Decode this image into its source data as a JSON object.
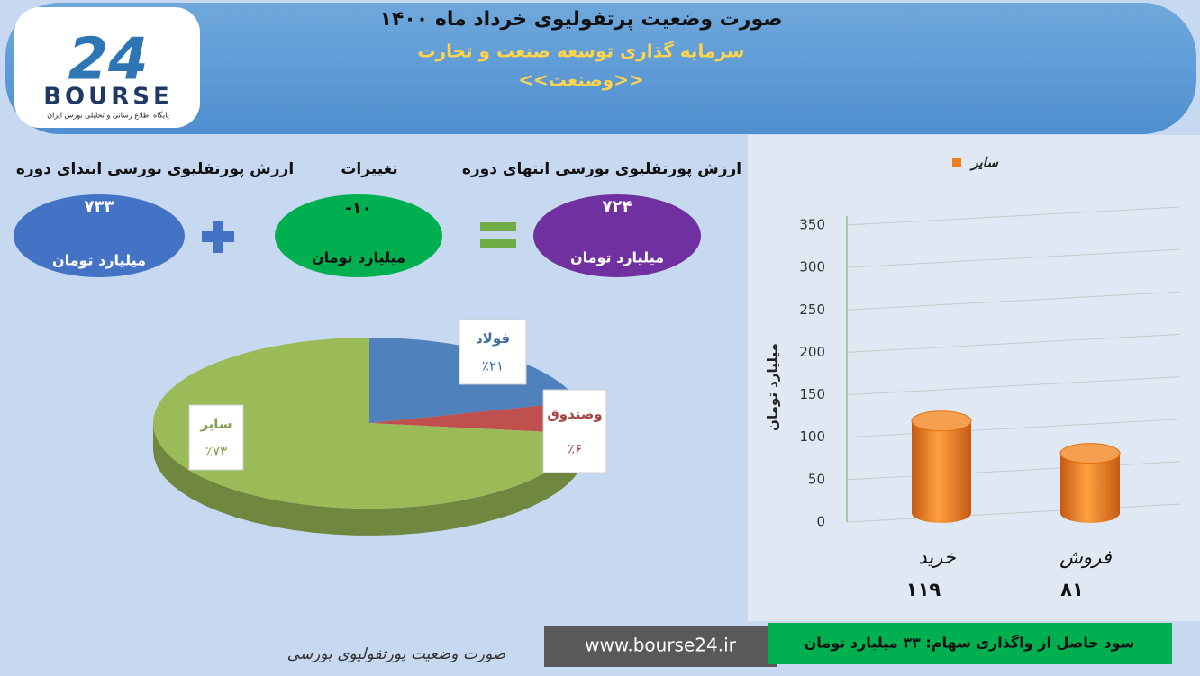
{
  "header": {
    "title": "صورت وضعیت پرتفولیوی خرداد ماه ۱۴۰۰",
    "subtitle": "سرمایه گذاری توسعه صنعت و تجارت",
    "symbol": "<<وصنعت>>",
    "logo": {
      "number": "24",
      "name": "BOURSE",
      "tagline": "پایگاه اطلاع رسانی و تحلیلی بورس ایران"
    }
  },
  "summary": [
    {
      "label": "ارزش پورتفلیوی بورسی ابتدای دوره",
      "value": "۷۳۳",
      "unit": "میلیارد تومان"
    },
    {
      "label": "تغییرات",
      "value": "-۱۰",
      "unit": "میلیارد تومان"
    },
    {
      "label": "ارزش پورتفلیوی بورسی انتهای دوره",
      "value": "۷۲۴",
      "unit": "میلیارد تومان"
    }
  ],
  "chart_data": [
    {
      "type": "pie",
      "categories": [
        "فولاد",
        "وصندوق",
        "سایر"
      ],
      "values": [
        21,
        6,
        73
      ],
      "value_labels": [
        "٪۲۱",
        "٪۶",
        "٪۷۳"
      ],
      "colors": [
        "#4f81bd",
        "#c0504d",
        "#9bbb59"
      ]
    },
    {
      "type": "bar",
      "ylabel": "میلیارد تومان",
      "categories": [
        "خرید",
        "فروش"
      ],
      "series": [
        {
          "name": "سایر",
          "color": "#f07f1c",
          "values": [
            119,
            81
          ],
          "value_labels": [
            "۱۱۹",
            "۸۱"
          ]
        }
      ],
      "ylim": [
        0,
        350
      ],
      "yticks": [
        0,
        50,
        100,
        150,
        200,
        250,
        300,
        350
      ],
      "grid": true,
      "legend": "top"
    }
  ],
  "footer": {
    "caption": "صورت وضعیت پورتفولیوی بورسی",
    "website": "www.bourse24.ir",
    "note": "سود حاصل از واگذاری سهام: ۳۳ میلیارد تومان"
  }
}
